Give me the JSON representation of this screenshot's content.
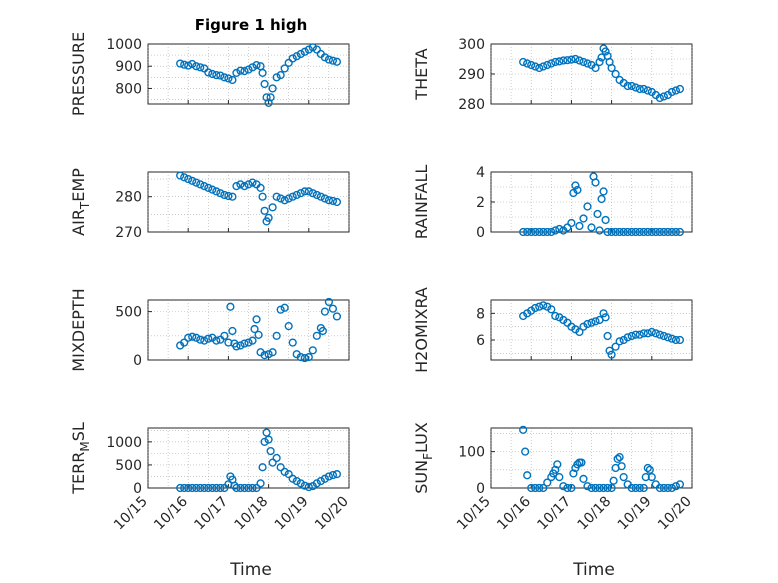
{
  "figure": {
    "title": "Figure 1 high",
    "xlabel": "Time",
    "xticks": [
      "10/15",
      "10/16",
      "10/17",
      "10/18",
      "10/19",
      "10/20"
    ],
    "marker_color": "#0072BD"
  },
  "chart_data": [
    {
      "type": "scatter",
      "title": "Figure 1 high",
      "ylabel": "PRESSURE",
      "ylim": [
        730,
        1000
      ],
      "yticks": [
        "800",
        "900",
        "1000"
      ],
      "x_days": [
        15.8,
        15.9,
        16.0,
        16.1,
        16.2,
        16.3,
        16.4,
        16.5,
        16.6,
        16.7,
        16.8,
        16.9,
        17.0,
        17.1,
        17.2,
        17.3,
        17.4,
        17.5,
        17.6,
        17.7,
        17.8,
        17.85,
        17.9,
        17.95,
        18.0,
        18.05,
        18.1,
        18.2,
        18.3,
        18.4,
        18.5,
        18.6,
        18.7,
        18.8,
        18.9,
        19.0,
        19.1,
        19.2,
        19.3,
        19.4,
        19.5,
        19.6,
        19.7
      ],
      "y": [
        912,
        907,
        903,
        910,
        900,
        895,
        890,
        872,
        865,
        860,
        858,
        850,
        845,
        838,
        870,
        880,
        878,
        885,
        895,
        905,
        900,
        870,
        820,
        760,
        735,
        760,
        800,
        850,
        860,
        890,
        915,
        935,
        945,
        955,
        965,
        975,
        985,
        975,
        955,
        940,
        930,
        925,
        920
      ]
    },
    {
      "type": "scatter",
      "ylabel": "THETA",
      "ylim": [
        280,
        300
      ],
      "yticks": [
        "280",
        "290",
        "300"
      ],
      "x_days": [
        15.8,
        15.9,
        16.0,
        16.1,
        16.2,
        16.3,
        16.4,
        16.5,
        16.6,
        16.7,
        16.8,
        16.9,
        17.0,
        17.1,
        17.2,
        17.3,
        17.4,
        17.5,
        17.6,
        17.7,
        17.75,
        17.8,
        17.85,
        17.9,
        17.95,
        18.0,
        18.1,
        18.2,
        18.3,
        18.4,
        18.5,
        18.6,
        18.7,
        18.8,
        18.9,
        19.0,
        19.1,
        19.2,
        19.3,
        19.4,
        19.5,
        19.6,
        19.7
      ],
      "y": [
        294,
        293.5,
        293,
        292.5,
        292,
        292.5,
        293,
        293.5,
        294,
        294.2,
        294.5,
        294.6,
        294.8,
        295,
        294.5,
        294,
        293.5,
        293,
        292,
        294,
        295.5,
        298.5,
        297.5,
        296,
        294,
        292,
        290,
        288,
        287,
        286,
        286,
        285.5,
        285,
        285,
        284.5,
        284,
        283,
        282,
        282.5,
        283,
        284,
        284.5,
        285
      ]
    },
    {
      "type": "scatter",
      "ylabel": "AIR_TEMP",
      "ylim": [
        270,
        287
      ],
      "yticks": [
        "270",
        "280"
      ],
      "x_days": [
        15.8,
        15.9,
        16.0,
        16.1,
        16.2,
        16.3,
        16.4,
        16.5,
        16.6,
        16.7,
        16.8,
        16.9,
        17.0,
        17.1,
        17.2,
        17.3,
        17.4,
        17.5,
        17.6,
        17.7,
        17.8,
        17.85,
        17.9,
        17.95,
        18.0,
        18.1,
        18.2,
        18.3,
        18.4,
        18.5,
        18.6,
        18.7,
        18.8,
        18.9,
        19.0,
        19.1,
        19.2,
        19.3,
        19.4,
        19.5,
        19.6,
        19.7
      ],
      "y": [
        286,
        285.5,
        285,
        284.5,
        284,
        283.5,
        283,
        282.5,
        282,
        281.5,
        281,
        280.5,
        280.2,
        280,
        283,
        283.5,
        283,
        283.5,
        284,
        283.5,
        282.5,
        280,
        276,
        273,
        274,
        277,
        280,
        279.5,
        279,
        279.5,
        280,
        280.5,
        281,
        281.5,
        281.5,
        281,
        280.5,
        280,
        279.5,
        279,
        278.8,
        278.5
      ]
    },
    {
      "type": "scatter",
      "ylabel": "RAINFALL",
      "ylim": [
        0,
        4
      ],
      "yticks": [
        "0",
        "2",
        "4"
      ],
      "x_days": [
        15.8,
        15.9,
        16.0,
        16.1,
        16.2,
        16.3,
        16.4,
        16.5,
        16.6,
        16.7,
        16.8,
        16.9,
        17.0,
        17.05,
        17.1,
        17.15,
        17.2,
        17.3,
        17.4,
        17.5,
        17.55,
        17.6,
        17.65,
        17.7,
        17.75,
        17.8,
        17.85,
        17.9,
        18.0,
        18.1,
        18.2,
        18.3,
        18.4,
        18.5,
        18.6,
        18.7,
        18.8,
        18.9,
        19.0,
        19.1,
        19.2,
        19.3,
        19.4,
        19.5,
        19.6,
        19.7
      ],
      "y": [
        0,
        0,
        0,
        0,
        0,
        0,
        0,
        0,
        0.1,
        0.2,
        0.1,
        0.3,
        0.6,
        2.6,
        3.1,
        2.8,
        0.4,
        0.9,
        1.7,
        0.3,
        3.7,
        3.3,
        1.2,
        0.1,
        2.2,
        2.7,
        0.8,
        0,
        0,
        0,
        0,
        0,
        0,
        0,
        0,
        0,
        0,
        0,
        0,
        0,
        0,
        0,
        0,
        0,
        0,
        0
      ]
    },
    {
      "type": "scatter",
      "ylabel": "MIXDEPTH",
      "ylim": [
        0,
        620
      ],
      "yticks": [
        "0",
        "500"
      ],
      "x_days": [
        15.8,
        15.9,
        16.0,
        16.1,
        16.2,
        16.3,
        16.4,
        16.5,
        16.6,
        16.7,
        16.8,
        16.9,
        17.0,
        17.05,
        17.1,
        17.15,
        17.2,
        17.3,
        17.4,
        17.5,
        17.6,
        17.65,
        17.7,
        17.75,
        17.8,
        17.9,
        18.0,
        18.1,
        18.2,
        18.3,
        18.4,
        18.5,
        18.6,
        18.7,
        18.8,
        18.9,
        19.0,
        19.1,
        19.2,
        19.3,
        19.35,
        19.4,
        19.5,
        19.6,
        19.7
      ],
      "y": [
        150,
        180,
        230,
        240,
        230,
        210,
        200,
        220,
        230,
        200,
        210,
        250,
        180,
        550,
        300,
        170,
        140,
        150,
        170,
        180,
        200,
        320,
        420,
        260,
        80,
        50,
        60,
        80,
        250,
        520,
        540,
        350,
        180,
        60,
        30,
        20,
        30,
        100,
        250,
        330,
        300,
        500,
        600,
        530,
        450
      ]
    },
    {
      "type": "scatter",
      "ylabel": "H2OMIXRA",
      "ylim": [
        4.5,
        9
      ],
      "yticks": [
        "6",
        "8"
      ],
      "x_days": [
        15.8,
        15.9,
        16.0,
        16.1,
        16.2,
        16.3,
        16.4,
        16.5,
        16.6,
        16.7,
        16.8,
        16.9,
        17.0,
        17.1,
        17.2,
        17.3,
        17.4,
        17.5,
        17.6,
        17.7,
        17.8,
        17.85,
        17.9,
        17.95,
        18.0,
        18.1,
        18.2,
        18.3,
        18.4,
        18.5,
        18.6,
        18.7,
        18.8,
        18.9,
        19.0,
        19.1,
        19.2,
        19.3,
        19.4,
        19.5,
        19.6,
        19.7
      ],
      "y": [
        7.8,
        8.0,
        8.2,
        8.4,
        8.5,
        8.6,
        8.5,
        8.3,
        7.8,
        7.7,
        7.5,
        7.3,
        7.0,
        6.8,
        6.6,
        7.0,
        7.2,
        7.3,
        7.4,
        7.5,
        8.0,
        7.7,
        6.3,
        5.2,
        4.9,
        5.5,
        5.9,
        6.0,
        6.2,
        6.3,
        6.4,
        6.4,
        6.5,
        6.5,
        6.6,
        6.5,
        6.4,
        6.3,
        6.2,
        6.1,
        6.0,
        6.0
      ]
    },
    {
      "type": "scatter",
      "ylabel": "TERR_MSL",
      "ylim": [
        0,
        1300
      ],
      "yticks": [
        "0",
        "500",
        "1000"
      ],
      "x_days": [
        15.8,
        15.9,
        16.0,
        16.1,
        16.2,
        16.3,
        16.4,
        16.5,
        16.6,
        16.7,
        16.8,
        16.9,
        17.0,
        17.05,
        17.1,
        17.15,
        17.2,
        17.3,
        17.4,
        17.5,
        17.6,
        17.7,
        17.8,
        17.85,
        17.9,
        17.95,
        18.0,
        18.05,
        18.1,
        18.2,
        18.3,
        18.4,
        18.5,
        18.6,
        18.7,
        18.8,
        18.9,
        19.0,
        19.1,
        19.2,
        19.3,
        19.4,
        19.5,
        19.6,
        19.7
      ],
      "y": [
        0,
        0,
        0,
        0,
        0,
        0,
        0,
        0,
        0,
        0,
        0,
        0,
        80,
        250,
        180,
        50,
        0,
        0,
        0,
        0,
        0,
        0,
        100,
        450,
        1000,
        1200,
        1050,
        800,
        550,
        650,
        450,
        350,
        300,
        200,
        150,
        100,
        50,
        20,
        40,
        100,
        150,
        200,
        250,
        280,
        300
      ]
    },
    {
      "type": "scatter",
      "ylabel": "SUN_FLUX",
      "ylim": [
        0,
        165
      ],
      "yticks": [
        "0",
        "100"
      ],
      "x_days": [
        15.8,
        15.85,
        15.9,
        16.0,
        16.1,
        16.2,
        16.3,
        16.4,
        16.5,
        16.55,
        16.6,
        16.65,
        16.7,
        16.8,
        16.9,
        17.0,
        17.05,
        17.1,
        17.15,
        17.2,
        17.25,
        17.3,
        17.4,
        17.5,
        17.6,
        17.7,
        17.8,
        17.9,
        18.0,
        18.05,
        18.1,
        18.15,
        18.2,
        18.25,
        18.3,
        18.4,
        18.5,
        18.6,
        18.7,
        18.8,
        18.85,
        18.9,
        18.95,
        19.0,
        19.1,
        19.2,
        19.3,
        19.4,
        19.5,
        19.6,
        19.7
      ],
      "y": [
        160,
        100,
        35,
        0,
        0,
        0,
        0,
        15,
        30,
        40,
        50,
        65,
        30,
        5,
        0,
        0,
        40,
        55,
        65,
        70,
        70,
        25,
        5,
        0,
        0,
        0,
        0,
        0,
        0,
        20,
        55,
        80,
        85,
        60,
        30,
        10,
        0,
        0,
        0,
        0,
        30,
        55,
        50,
        30,
        10,
        0,
        0,
        0,
        0,
        5,
        10
      ]
    }
  ]
}
